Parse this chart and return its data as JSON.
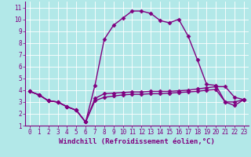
{
  "xlabel": "Windchill (Refroidissement éolien,°C)",
  "background_color": "#b2e8e8",
  "grid_color": "#ffffff",
  "line_color": "#800080",
  "spine_color": "#800080",
  "xlim": [
    -0.5,
    23.5
  ],
  "ylim": [
    1,
    11.5
  ],
  "xticks": [
    0,
    1,
    2,
    3,
    4,
    5,
    6,
    7,
    8,
    9,
    10,
    11,
    12,
    13,
    14,
    15,
    16,
    17,
    18,
    19,
    20,
    21,
    22,
    23
  ],
  "yticks": [
    1,
    2,
    3,
    4,
    5,
    6,
    7,
    8,
    9,
    10,
    11
  ],
  "series1_x": [
    0,
    1,
    2,
    3,
    4,
    5,
    6,
    7,
    8,
    9,
    10,
    11,
    12,
    13,
    14,
    15,
    16,
    17,
    18,
    19,
    20,
    21,
    22,
    23
  ],
  "series1_y": [
    3.9,
    3.6,
    3.1,
    3.0,
    2.6,
    2.3,
    1.3,
    4.4,
    8.3,
    9.5,
    10.1,
    10.7,
    10.7,
    10.5,
    9.9,
    9.7,
    10.0,
    8.6,
    6.6,
    4.5,
    4.4,
    3.0,
    2.7,
    3.2
  ],
  "series2_x": [
    0,
    1,
    2,
    3,
    4,
    5,
    6,
    7,
    8,
    9,
    10,
    11,
    12,
    13,
    14,
    15,
    16,
    17,
    18,
    19,
    20,
    21,
    22,
    23
  ],
  "series2_y": [
    3.9,
    3.6,
    3.1,
    3.0,
    2.6,
    2.3,
    1.3,
    3.3,
    3.7,
    3.75,
    3.8,
    3.85,
    3.85,
    3.9,
    3.9,
    3.9,
    3.95,
    4.0,
    4.1,
    4.2,
    4.3,
    4.3,
    3.4,
    3.2
  ],
  "series3_x": [
    0,
    1,
    2,
    3,
    4,
    5,
    6,
    7,
    8,
    9,
    10,
    11,
    12,
    13,
    14,
    15,
    16,
    17,
    18,
    19,
    20,
    21,
    22,
    23
  ],
  "series3_y": [
    3.9,
    3.6,
    3.1,
    3.0,
    2.6,
    2.3,
    1.3,
    3.1,
    3.4,
    3.5,
    3.6,
    3.65,
    3.65,
    3.7,
    3.7,
    3.75,
    3.8,
    3.85,
    3.9,
    4.0,
    4.05,
    3.0,
    3.0,
    3.2
  ],
  "marker": "D",
  "markersize": 2.5,
  "linewidth": 1.0,
  "tick_fontsize": 5.5,
  "xlabel_fontsize": 6.5
}
